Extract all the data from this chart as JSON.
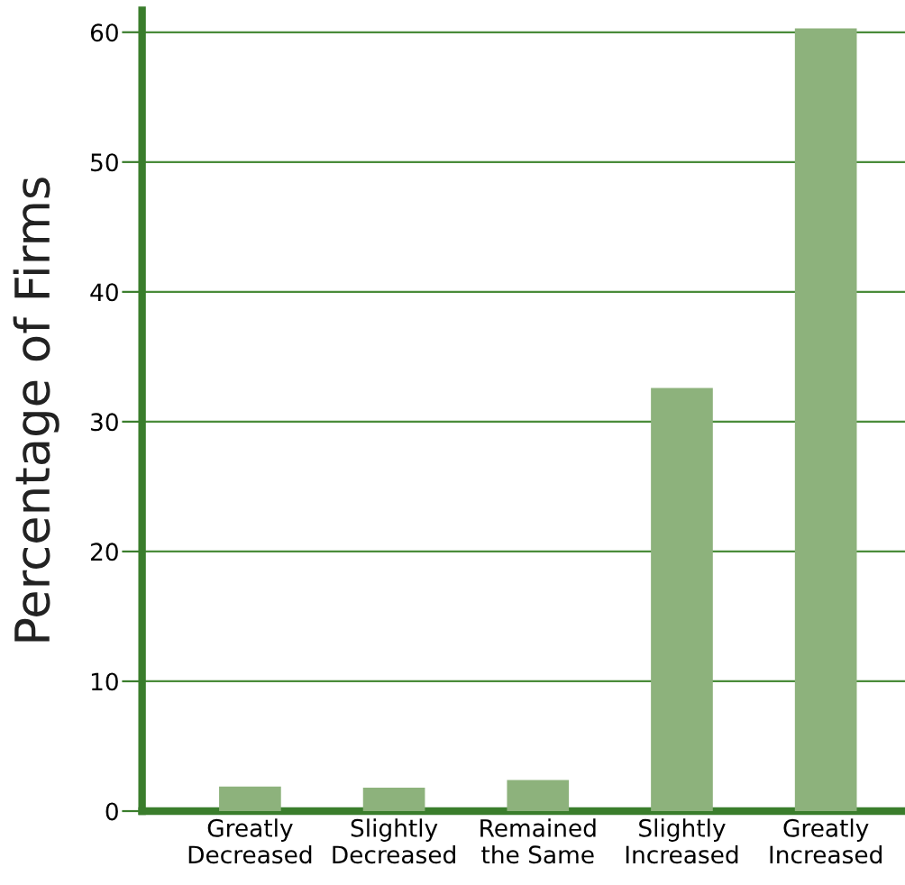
{
  "chart_data": {
    "type": "bar",
    "ylabel": "Percentage of Firms",
    "categories": [
      "Greatly\nDecreased",
      "Slightly\nDecreased",
      "Remained\nthe Same",
      "Slightly\nIncreased",
      "Greatly\nIncreased"
    ],
    "values": [
      1.9,
      1.8,
      2.4,
      32.6,
      60.3
    ],
    "color": "#8db27c",
    "ylim": [
      0,
      61.7
    ],
    "yticks": [
      0,
      10,
      20,
      30,
      40,
      50,
      60
    ],
    "grid": "y"
  }
}
